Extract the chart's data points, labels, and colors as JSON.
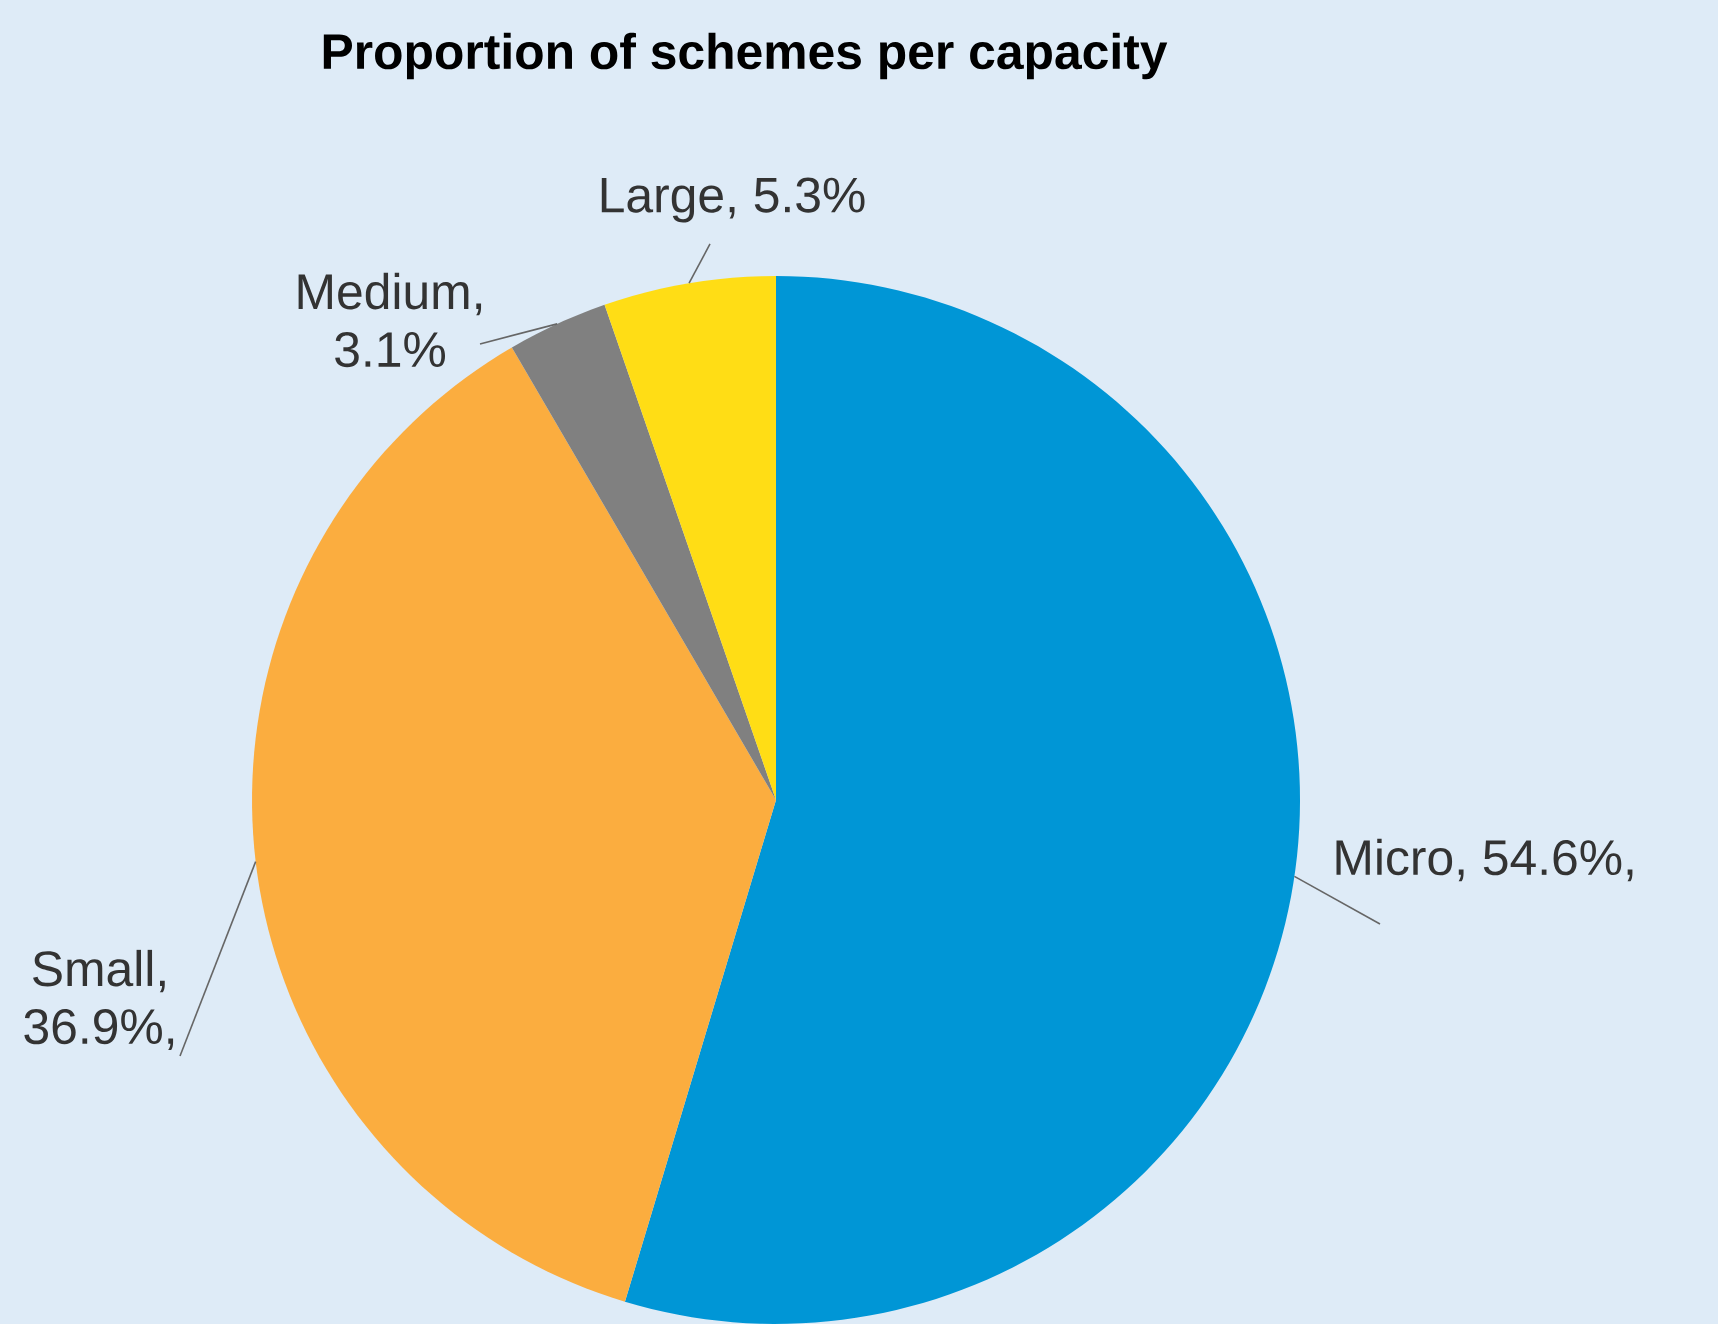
{
  "chart_data": {
    "type": "pie",
    "title": "Proportion of schemes per capacity",
    "categories": [
      "Micro",
      "Small",
      "Medium",
      "Large"
    ],
    "values": [
      54.6,
      36.9,
      3.1,
      5.3
    ],
    "value_labels": [
      ", 54.6%,",
      ", 36.9%,",
      ", 3.1%",
      ", 5.3%"
    ],
    "colors": [
      "#0096d6",
      "#fbad3f",
      "#808080",
      "#ffdd15"
    ]
  }
}
